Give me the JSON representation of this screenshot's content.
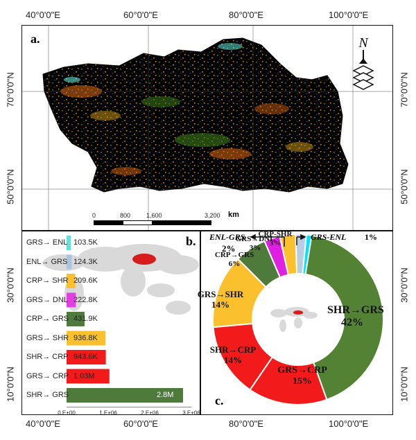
{
  "coords": {
    "top_lon": [
      "40°0'0\"E",
      "60°0'0\"E",
      "80°0'0\"E",
      "100°0'0\"E"
    ],
    "bottom_lon": [
      "40°0'0\"E",
      "60°0'0\"E",
      "80°0'0\"E",
      "100°0'0\"E"
    ],
    "left_lat": [
      "70°0'0\"N",
      "50°0'0\"N",
      "30°0'0\"N",
      "10°0'0\"N"
    ],
    "right_lat": [
      "70°0'0\"N",
      "50°0'0\"N",
      "30°0'0\"N",
      "10°0'0\"N"
    ]
  },
  "panel_a": {
    "label": "a.",
    "north": "N",
    "scale_ticks": [
      "0",
      "800",
      "1,600",
      "3,200"
    ],
    "scale_unit": "km"
  },
  "panel_b": {
    "label": "b."
  },
  "panel_c": {
    "label": "c."
  },
  "chart_data": [
    {
      "type": "bar",
      "orientation": "horizontal",
      "categories": [
        "GRS→ ENL",
        "ENL→ GRS",
        "CRP→ SHR",
        "GRS→ DNL",
        "CRP→ GRS",
        "GRS→ SHR",
        "SHR→ CRP",
        "GRS→ CRP",
        "SHR→ GRS"
      ],
      "values": [
        103500,
        124300,
        209600,
        222800,
        431900,
        936800,
        943600,
        1030000,
        2800000
      ],
      "value_labels": [
        "103.5K",
        "124.3K",
        "209.6K",
        "222.8K",
        "431.9K",
        "936.8K",
        "943.6K",
        "1.03M",
        "2.8M"
      ],
      "colors": [
        "#5fe3d8",
        "#a9c3e0",
        "#fbc02d",
        "#e040e0",
        "#4e7a3c",
        "#fbc02d",
        "#f21a1a",
        "#f21a1a",
        "#4e7a3c"
      ],
      "xticks": [
        "0.E+00",
        "1.E+06",
        "2.E+06",
        "3.E+06"
      ],
      "xlim": [
        0,
        3000000
      ]
    },
    {
      "type": "pie",
      "donut": true,
      "slices": [
        {
          "label": "SHR→GRS",
          "pct_label": "42%",
          "value": 42,
          "color": "#548235"
        },
        {
          "label": "GRS→CRP",
          "pct_label": "15%",
          "value": 15,
          "color": "#f21a1a"
        },
        {
          "label": "SHR→CRP",
          "pct_label": "14%",
          "value": 14,
          "color": "#f21a1a"
        },
        {
          "label": "GRS→SHR",
          "pct_label": "14%",
          "value": 14,
          "color": "#fbc02d"
        },
        {
          "label": "CRP→GRS",
          "pct_label": "6%",
          "value": 6,
          "color": "#4e7a3c"
        },
        {
          "label": "GRS→DNL",
          "pct_label": "3%",
          "value": 3,
          "color": "#e020e0"
        },
        {
          "label": "CRP-SHR",
          "pct_label": "3%",
          "value": 3,
          "color": "#fbc02d"
        },
        {
          "label": "ENL-GRS",
          "pct_label": "2%",
          "value": 2,
          "color": "#b8cce4"
        },
        {
          "label": "GRS-ENL",
          "pct_label": "1%",
          "value": 1,
          "color": "#00e5ff"
        }
      ],
      "outer_labels": {
        "enl_grs": "ENL-GRS",
        "enl_grs_pct": "2%",
        "grs_enl": "GRS-ENL",
        "grs_enl_pct": "1%"
      }
    }
  ]
}
